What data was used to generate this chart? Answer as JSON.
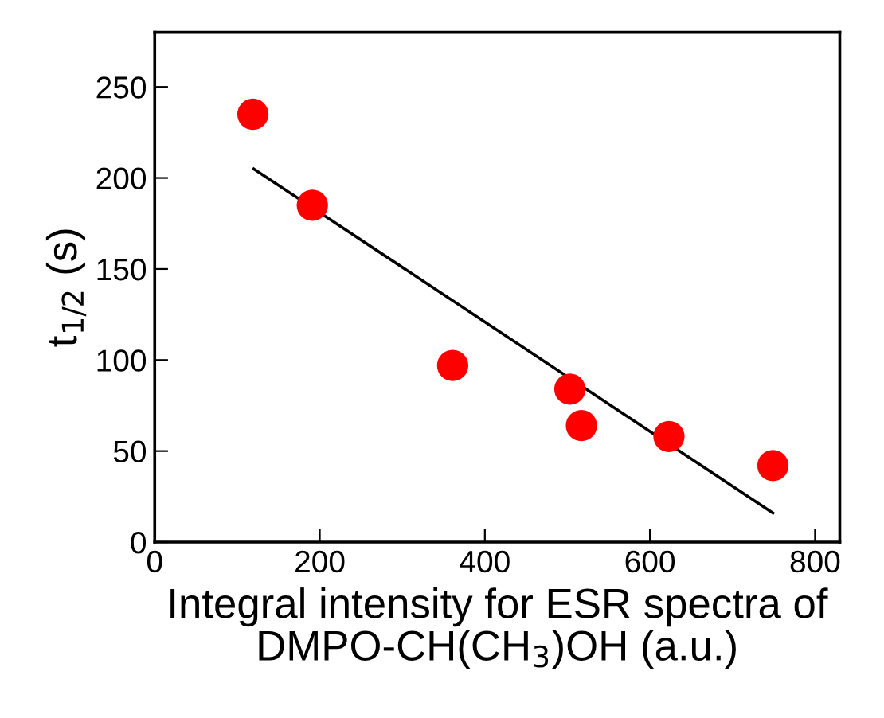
{
  "chart_data": {
    "type": "scatter",
    "xlabel": "Integral intensity for ESR spectra of\nDMPO-CH(CH$_{3}$)OH (a.u.)",
    "ylabel": "t$_{1/2}$ (s)",
    "xlim": [
      0,
      830
    ],
    "ylim": [
      0,
      280
    ],
    "xticks": [
      0,
      200,
      400,
      600,
      800
    ],
    "yticks": [
      0,
      50,
      100,
      150,
      200,
      250
    ],
    "grid": false,
    "legend": false,
    "series": [
      {
        "marker": "circle",
        "color": "#ff0000",
        "x": [
          119,
          191,
          361,
          503,
          517,
          623,
          749
        ],
        "values": [
          235,
          185,
          97,
          84,
          64,
          58,
          42
        ]
      },
      {
        "type": "line",
        "marker": "none",
        "color": "#000000",
        "line_style": "solid",
        "x": [
          120,
          749
        ],
        "values": [
          205,
          16
        ]
      }
    ]
  }
}
